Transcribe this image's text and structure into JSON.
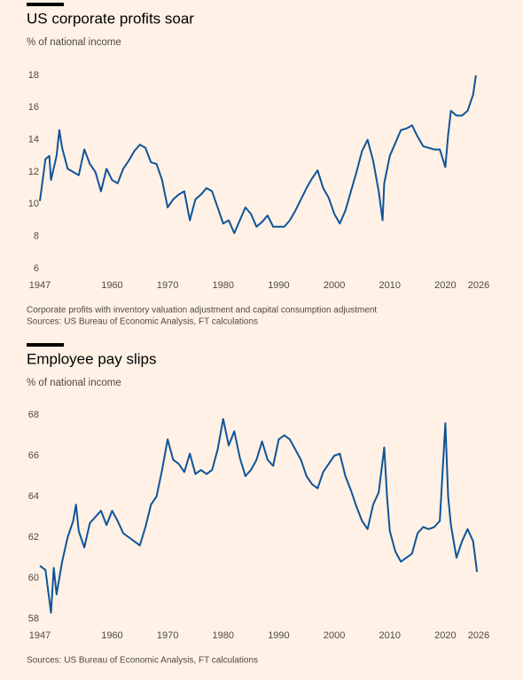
{
  "chart_data": [
    {
      "type": "line",
      "title": "US corporate profits soar",
      "subtitle": "% of national income",
      "x": [
        1947,
        1947.5,
        1948,
        1948.7,
        1949,
        1950,
        1950.5,
        1951,
        1952,
        1953,
        1954,
        1955,
        1956,
        1957,
        1958,
        1959,
        1960,
        1961,
        1962,
        1963,
        1964,
        1965,
        1966,
        1967,
        1968,
        1969,
        1970,
        1971,
        1972,
        1973,
        1974,
        1975,
        1976,
        1977,
        1978,
        1979,
        1980,
        1981,
        1982,
        1983,
        1984,
        1985,
        1986,
        1987,
        1988,
        1989,
        1990,
        1991,
        1992,
        1993,
        1994,
        1995,
        1996,
        1997,
        1998,
        1999,
        2000,
        2001,
        2002,
        2003,
        2004,
        2005,
        2006,
        2007,
        2008,
        2008.7,
        2009,
        2010,
        2011,
        2012,
        2013,
        2014,
        2015,
        2016,
        2017,
        2018,
        2019,
        2020,
        2020.5,
        2021,
        2022,
        2023,
        2024,
        2025,
        2025.5
      ],
      "values": [
        10.2,
        11.5,
        12.8,
        13.0,
        11.5,
        13.0,
        14.6,
        13.5,
        12.2,
        12.0,
        11.8,
        13.4,
        12.5,
        12.0,
        10.8,
        12.2,
        11.5,
        11.3,
        12.2,
        12.7,
        13.3,
        13.7,
        13.5,
        12.6,
        12.5,
        11.5,
        9.8,
        10.3,
        10.6,
        10.8,
        9.0,
        10.3,
        10.6,
        11.0,
        10.8,
        9.8,
        8.8,
        9.0,
        8.2,
        9.0,
        9.8,
        9.4,
        8.6,
        8.9,
        9.3,
        8.6,
        8.6,
        8.6,
        9.0,
        9.6,
        10.3,
        11.0,
        11.6,
        12.1,
        11.0,
        10.4,
        9.4,
        8.8,
        9.6,
        10.8,
        12.0,
        13.3,
        14.0,
        12.7,
        10.8,
        9.0,
        11.3,
        13.0,
        13.8,
        14.6,
        14.7,
        14.9,
        14.2,
        13.6,
        13.5,
        13.4,
        13.4,
        12.3,
        14.3,
        15.8,
        15.5,
        15.5,
        15.8,
        16.8,
        18.0
      ],
      "color": "#0f5499",
      "xlim": [
        1947,
        2026
      ],
      "xticks": [
        1947,
        1960,
        1970,
        1980,
        1990,
        2000,
        2010,
        2020,
        2026
      ],
      "ylim": [
        6,
        18
      ],
      "yticks": [
        6,
        8,
        10,
        12,
        14,
        16,
        18
      ],
      "grid": false,
      "notes": [
        "Corporate profits with inventory valuation adjustment and capital consumption adjustment",
        "Sources: US Bureau of Economic Analysis, FT calculations"
      ]
    },
    {
      "type": "line",
      "title": "Employee pay slips",
      "subtitle": "% of national income",
      "x": [
        1947,
        1948,
        1949,
        1949.5,
        1950,
        1951,
        1952,
        1953,
        1953.5,
        1954,
        1955,
        1956,
        1957,
        1958,
        1959,
        1960,
        1961,
        1962,
        1963,
        1964,
        1965,
        1966,
        1967,
        1968,
        1969,
        1970,
        1971,
        1972,
        1973,
        1974,
        1975,
        1976,
        1977,
        1978,
        1979,
        1980,
        1981,
        1982,
        1983,
        1984,
        1985,
        1986,
        1987,
        1988,
        1989,
        1990,
        1991,
        1992,
        1993,
        1994,
        1995,
        1996,
        1997,
        1998,
        1999,
        2000,
        2001,
        2002,
        2003,
        2004,
        2005,
        2006,
        2007,
        2008,
        2009,
        2009.5,
        2010,
        2011,
        2012,
        2013,
        2014,
        2015,
        2016,
        2017,
        2018,
        2019,
        2020,
        2020.5,
        2021,
        2022,
        2023,
        2024,
        2025,
        2025.7
      ],
      "values": [
        60.6,
        60.4,
        58.3,
        60.5,
        59.2,
        60.8,
        62.0,
        62.8,
        63.6,
        62.3,
        61.5,
        62.7,
        63.0,
        63.3,
        62.6,
        63.3,
        62.8,
        62.2,
        62.0,
        61.8,
        61.6,
        62.5,
        63.6,
        64.0,
        65.3,
        66.8,
        65.8,
        65.6,
        65.2,
        66.1,
        65.1,
        65.3,
        65.1,
        65.3,
        66.3,
        67.8,
        66.5,
        67.2,
        65.9,
        65.0,
        65.3,
        65.8,
        66.7,
        65.8,
        65.5,
        66.8,
        67.0,
        66.8,
        66.3,
        65.8,
        65.0,
        64.6,
        64.4,
        65.2,
        65.6,
        66.0,
        66.1,
        65.0,
        64.3,
        63.5,
        62.8,
        62.4,
        63.6,
        64.2,
        66.4,
        64.0,
        62.3,
        61.3,
        60.8,
        61.0,
        61.2,
        62.2,
        62.5,
        62.4,
        62.5,
        62.8,
        67.6,
        64.0,
        62.6,
        61.0,
        61.8,
        62.4,
        61.8,
        60.3
      ],
      "color": "#0f5499",
      "xlim": [
        1947,
        2026
      ],
      "xticks": [
        1947,
        1960,
        1970,
        1980,
        1990,
        2000,
        2010,
        2020,
        2026
      ],
      "ylim": [
        58,
        68
      ],
      "yticks": [
        58,
        60,
        62,
        64,
        66,
        68
      ],
      "grid": false,
      "notes": [
        "Sources: US Bureau of Economic Analysis, FT calculations"
      ]
    }
  ]
}
